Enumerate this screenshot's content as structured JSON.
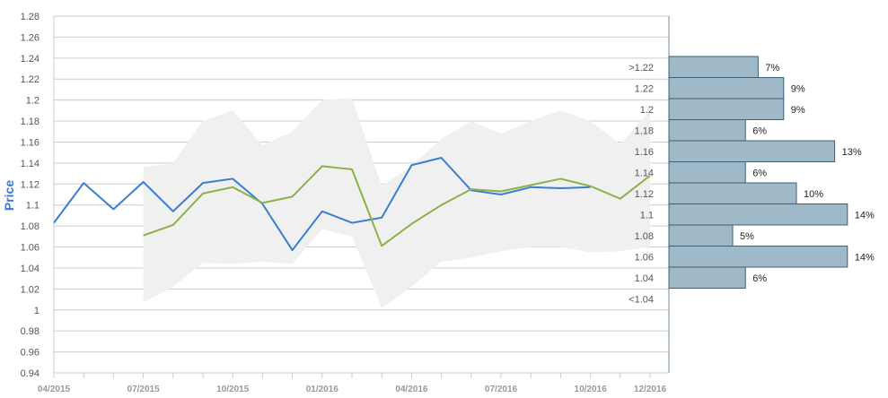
{
  "chart_data": {
    "type": "line",
    "ylabel": "Price",
    "ylim": [
      0.94,
      1.28
    ],
    "yticks": [
      "1.28",
      "1.26",
      "1.24",
      "1.22",
      "1.2",
      "1.18",
      "1.16",
      "1.14",
      "1.12",
      "1.1",
      "1.08",
      "1.06",
      "1.04",
      "1.02",
      "1",
      "0.98",
      "0.96",
      "0.94"
    ],
    "xticks": [
      "04/2015",
      "07/2015",
      "10/2015",
      "01/2016",
      "04/2016",
      "07/2016",
      "10/2016",
      "12/2016"
    ],
    "x": [
      "04/2015",
      "05/2015",
      "06/2015",
      "07/2015",
      "08/2015",
      "09/2015",
      "10/2015",
      "11/2015",
      "12/2015",
      "01/2016",
      "02/2016",
      "03/2016",
      "04/2016",
      "05/2016",
      "06/2016",
      "07/2016",
      "08/2016",
      "09/2016",
      "10/2016",
      "11/2016",
      "12/2016"
    ],
    "series": [
      {
        "key": "blue",
        "color": "#3a7fd0",
        "values": [
          1.083,
          1.121,
          1.096,
          1.122,
          1.094,
          1.121,
          1.125,
          1.101,
          1.057,
          1.094,
          1.083,
          1.088,
          1.138,
          1.145,
          1.114,
          1.11,
          1.117,
          1.116,
          1.117,
          null,
          null
        ]
      },
      {
        "key": "green",
        "color": "#8db04a",
        "values": [
          null,
          null,
          null,
          1.071,
          1.081,
          1.111,
          1.117,
          1.102,
          1.108,
          1.137,
          1.134,
          1.061,
          1.082,
          1.1,
          1.115,
          1.113,
          1.119,
          1.125,
          1.118,
          1.106,
          1.128
        ]
      }
    ],
    "band": {
      "color": "#f0f0f0",
      "upper": [
        null,
        null,
        null,
        1.136,
        1.14,
        1.18,
        1.19,
        1.157,
        1.17,
        1.2,
        1.202,
        1.118,
        1.137,
        1.163,
        1.18,
        1.168,
        1.18,
        1.19,
        1.18,
        1.158,
        1.19
      ],
      "lower": [
        null,
        null,
        null,
        1.007,
        1.022,
        1.045,
        1.044,
        1.046,
        1.044,
        1.077,
        1.07,
        1.002,
        1.022,
        1.046,
        1.05,
        1.056,
        1.06,
        1.06,
        1.055,
        1.056,
        1.06
      ]
    },
    "histogram": {
      "bar_color": "#9fb9c8",
      "edge_color": "#3d6074",
      "bins": [
        {
          "label": ">1.22",
          "pct": "7%",
          "value": 7
        },
        {
          "label": "1.22",
          "pct": "9%",
          "value": 9
        },
        {
          "label": "1.2",
          "pct": "9%",
          "value": 9
        },
        {
          "label": "1.18",
          "pct": "6%",
          "value": 6
        },
        {
          "label": "1.16",
          "pct": "13%",
          "value": 13
        },
        {
          "label": "1.14",
          "pct": "6%",
          "value": 6
        },
        {
          "label": "1.12",
          "pct": "10%",
          "value": 10
        },
        {
          "label": "1.1",
          "pct": "14%",
          "value": 14
        },
        {
          "label": "1.08",
          "pct": "5%",
          "value": 5
        },
        {
          "label": "1.06",
          "pct": "14%",
          "value": 14
        },
        {
          "label": "1.04",
          "pct": "6%",
          "value": 6
        },
        {
          "label": "<1.04",
          "pct": "",
          "value": 0
        }
      ]
    }
  }
}
